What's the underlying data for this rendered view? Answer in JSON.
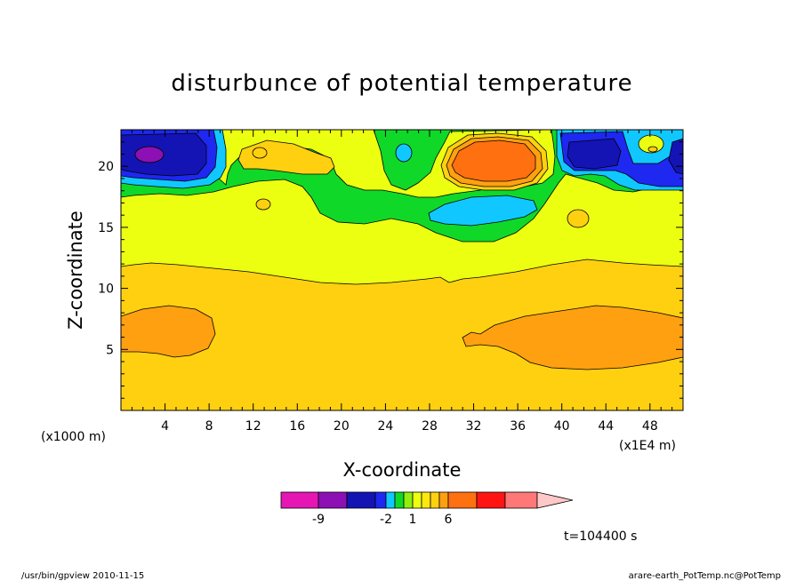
{
  "footer": {
    "left": "/usr/bin/gpview  2010-11-15",
    "right": "arare-earth_PotTemp.nc@PotTemp"
  },
  "time_label": "t=104400 s",
  "chart_data": {
    "type": "contour",
    "title": "disturbunce of potential temperature",
    "xlabel": "X-coordinate",
    "ylabel": "Z-coordinate",
    "x_unit_left": "(x1000 m)",
    "x_unit_right": "(x1E4 m)",
    "xlim": [
      0,
      51
    ],
    "ylim": [
      0,
      23
    ],
    "x_ticks": [
      4,
      8,
      12,
      16,
      20,
      24,
      28,
      32,
      36,
      40,
      44,
      48
    ],
    "y_ticks": [
      5,
      10,
      15,
      20
    ],
    "colorbar": {
      "levels": [
        -12,
        -9,
        -6,
        -3,
        -2,
        -1,
        0,
        1,
        2,
        3,
        4,
        6,
        8,
        10,
        12
      ],
      "colors": [
        "#e616b4",
        "#8c10b4",
        "#1414b4",
        "#1e28f0",
        "#10c8ff",
        "#10d828",
        "#90ee10",
        "#ecff10",
        "#ffe810",
        "#ffd010",
        "#ffa010",
        "#ff7010",
        "#ff1414",
        "#ff7878",
        "#ffc8c8"
      ],
      "tick_labels": [
        "-9",
        "-2",
        "1",
        "6"
      ]
    },
    "regions": [
      {
        "level": 1,
        "description": "background layer z 0-12"
      },
      {
        "level": 0,
        "description": "layer z 12-18"
      },
      {
        "level": 4,
        "description": "lower warm pocket x 0-8"
      },
      {
        "level": 4,
        "description": "lower warm pocket x 31-51"
      },
      {
        "level": 6,
        "description": "upper warm core x 28-38"
      },
      {
        "level": -9,
        "description": "upper cold core x 0-8"
      },
      {
        "level": -6,
        "description": "upper cold core x 40-45"
      }
    ]
  }
}
